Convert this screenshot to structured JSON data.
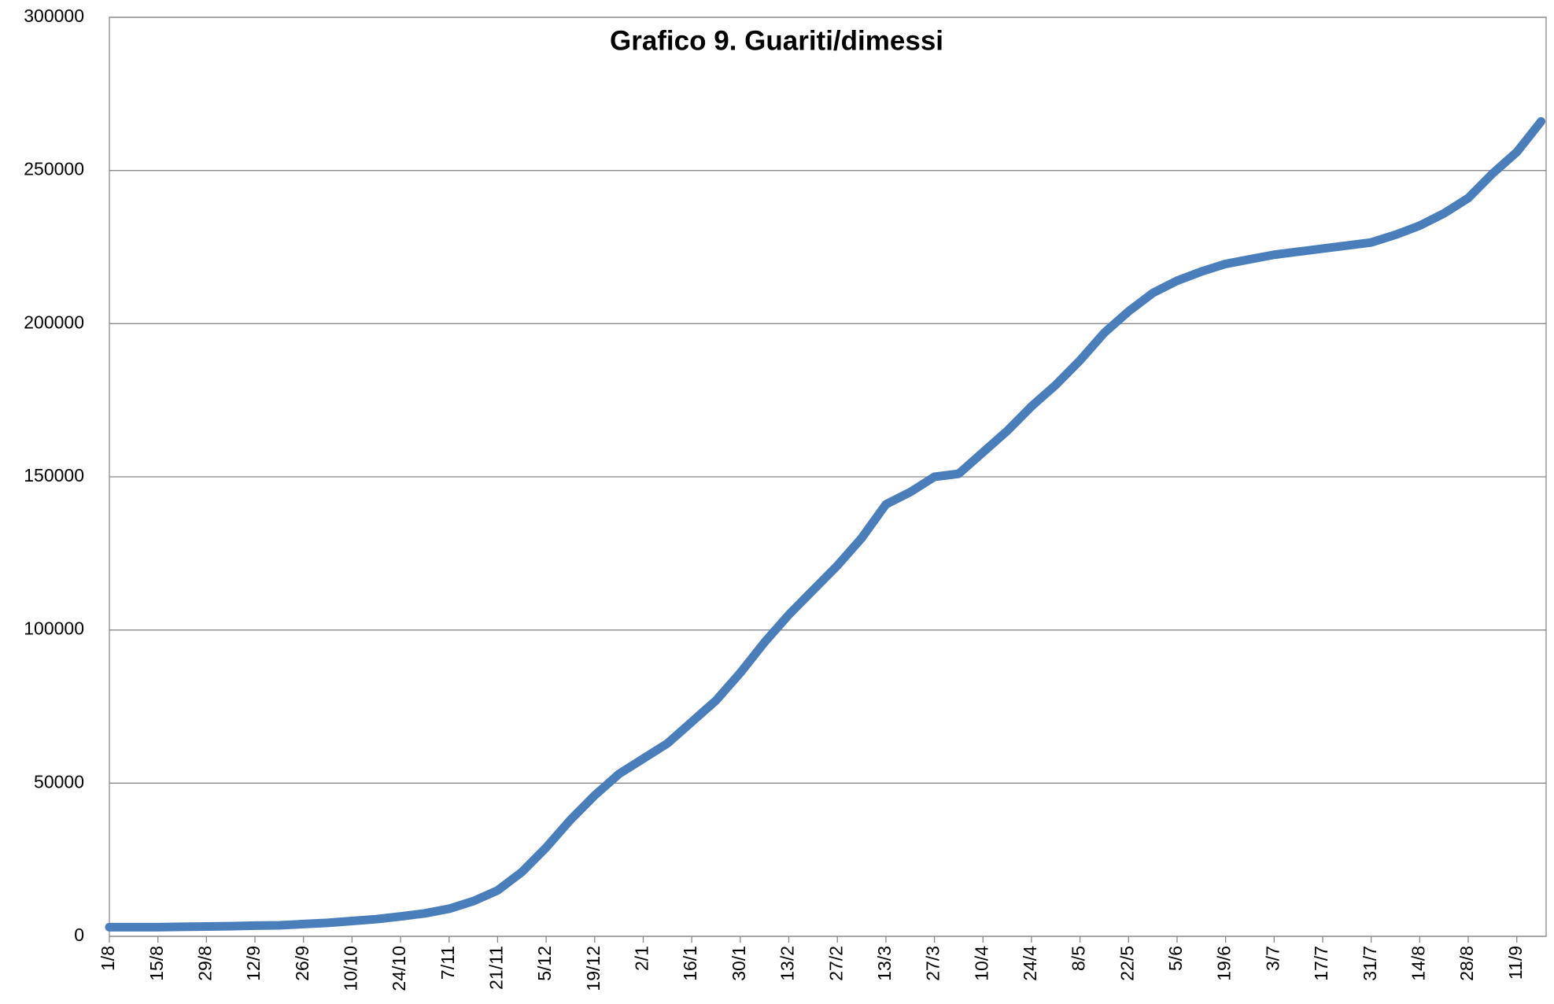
{
  "chart_data": {
    "type": "line",
    "title": "Grafico 9. Guariti/dimessi",
    "categories": [
      "1/8",
      null,
      "15/8",
      null,
      "29/8",
      null,
      "12/9",
      null,
      "26/9",
      null,
      "10/10",
      null,
      "24/10",
      null,
      "7/11",
      null,
      "21/11",
      null,
      "5/12",
      null,
      "19/12",
      null,
      "2/1",
      null,
      "16/1",
      null,
      "30/1",
      null,
      "13/2",
      null,
      "27/2",
      null,
      "13/3",
      null,
      "27/3",
      null,
      "10/4",
      null,
      "24/4",
      null,
      "8/5",
      null,
      "22/5",
      null,
      "5/6",
      null,
      "19/6",
      null,
      "3/7",
      null,
      "17/7",
      null,
      "31/7",
      null,
      "14/8",
      null,
      "28/8",
      null,
      "11/9",
      null
    ],
    "series": [
      {
        "name": "Guariti/dimessi",
        "color": "#4a7ebb",
        "values": [
          3000,
          3000,
          3000,
          3100,
          3200,
          3300,
          3500,
          3600,
          4000,
          4400,
          5000,
          5600,
          6500,
          7500,
          9000,
          11500,
          15000,
          21000,
          29000,
          38000,
          46000,
          53000,
          58000,
          63000,
          70000,
          77000,
          86000,
          96000,
          105000,
          113000,
          121000,
          130000,
          141000,
          145000,
          150000,
          151000,
          158000,
          165000,
          173000,
          180000,
          188000,
          197000,
          204000,
          210000,
          214000,
          217000,
          219500,
          221000,
          222500,
          223500,
          224500,
          225500,
          226500,
          229000,
          232000,
          236000,
          241000,
          249000,
          256000,
          266000
        ]
      }
    ],
    "ylim": [
      0,
      300000
    ],
    "yticks": [
      0,
      50000,
      100000,
      150000,
      200000,
      250000,
      300000
    ],
    "grid": true
  }
}
